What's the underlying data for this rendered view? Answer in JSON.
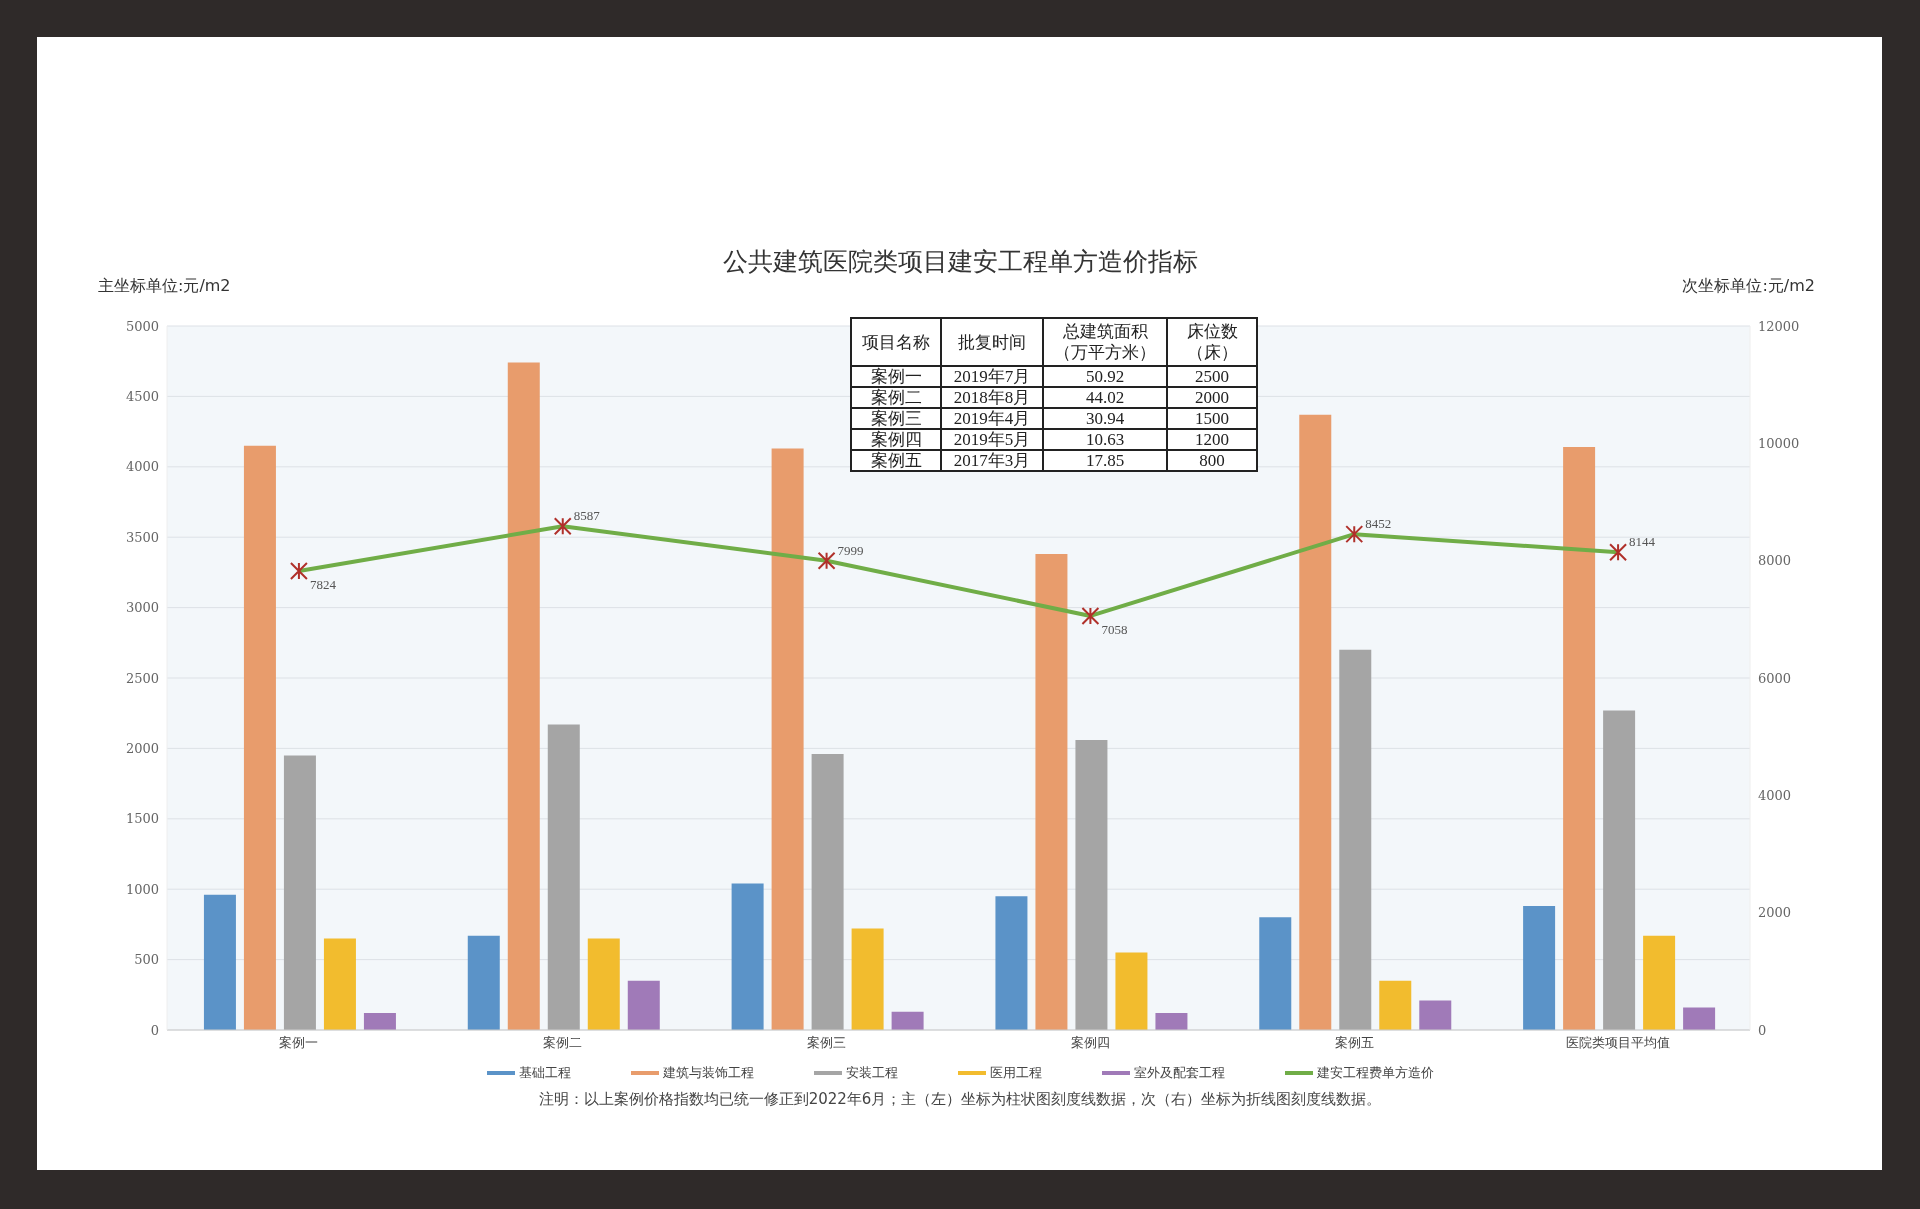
{
  "chart_data": {
    "type": "bar",
    "title": "公共建筑医院类项目建安工程单方造价指标",
    "ylabel": "主坐标单位:元/m2",
    "y2label": "次坐标单位:元/m2",
    "categories": [
      "案例一",
      "案例二",
      "案例三",
      "案例四",
      "案例五",
      "医院类项目平均值"
    ],
    "series": [
      {
        "name": "基础工程",
        "color": "#5b93c8",
        "values": [
          960,
          670,
          1040,
          950,
          800,
          880
        ]
      },
      {
        "name": "建筑与装饰工程",
        "color": "#e89c6c",
        "values": [
          4150,
          4740,
          4130,
          3380,
          4370,
          4140
        ]
      },
      {
        "name": "安装工程",
        "color": "#a5a5a5",
        "values": [
          1950,
          2170,
          1960,
          2060,
          2700,
          2270
        ]
      },
      {
        "name": "医用工程",
        "color": "#f2bc2e",
        "values": [
          650,
          650,
          720,
          550,
          350,
          670
        ]
      },
      {
        "name": "室外及配套工程",
        "color": "#a07ab8",
        "values": [
          120,
          350,
          130,
          120,
          210,
          160
        ]
      },
      {
        "name": "建安工程费单方造价",
        "type": "line",
        "axis": "y2",
        "color": "#70ad47",
        "marker": "cross",
        "values": [
          7824,
          8587,
          7999,
          7058,
          8452,
          8144
        ],
        "value_labels": [
          "7824",
          "8587",
          "7999",
          "7058",
          "8452",
          "8144"
        ]
      }
    ],
    "ylim": [
      0,
      5000
    ],
    "yticks": [
      0,
      500,
      1000,
      1500,
      2000,
      2500,
      3000,
      3500,
      4000,
      4500,
      5000
    ],
    "y2lim": [
      0,
      12000
    ],
    "y2ticks": [
      0,
      2000,
      4000,
      6000,
      8000,
      10000,
      12000
    ],
    "grid": "y",
    "legend": "bottom",
    "annotations": [
      "项目名称",
      "批复时间",
      "总建筑面积（万平方米）",
      "床位数（床）",
      "案例一",
      "2019年7月",
      "50.92",
      "2500",
      "案例二",
      "2018年8月",
      "44.02",
      "2000",
      "案例三",
      "2019年4月",
      "30.94",
      "1500",
      "案例四",
      "2019年5月",
      "10.63",
      "1200",
      "案例五",
      "2017年3月",
      "17.85",
      "800",
      "注明：以上案例价格指数均已统一修正到2022年6月；主（左）坐标为柱状图刻度线数据，次（右）坐标为折线图刻度线数据。"
    ]
  }
}
